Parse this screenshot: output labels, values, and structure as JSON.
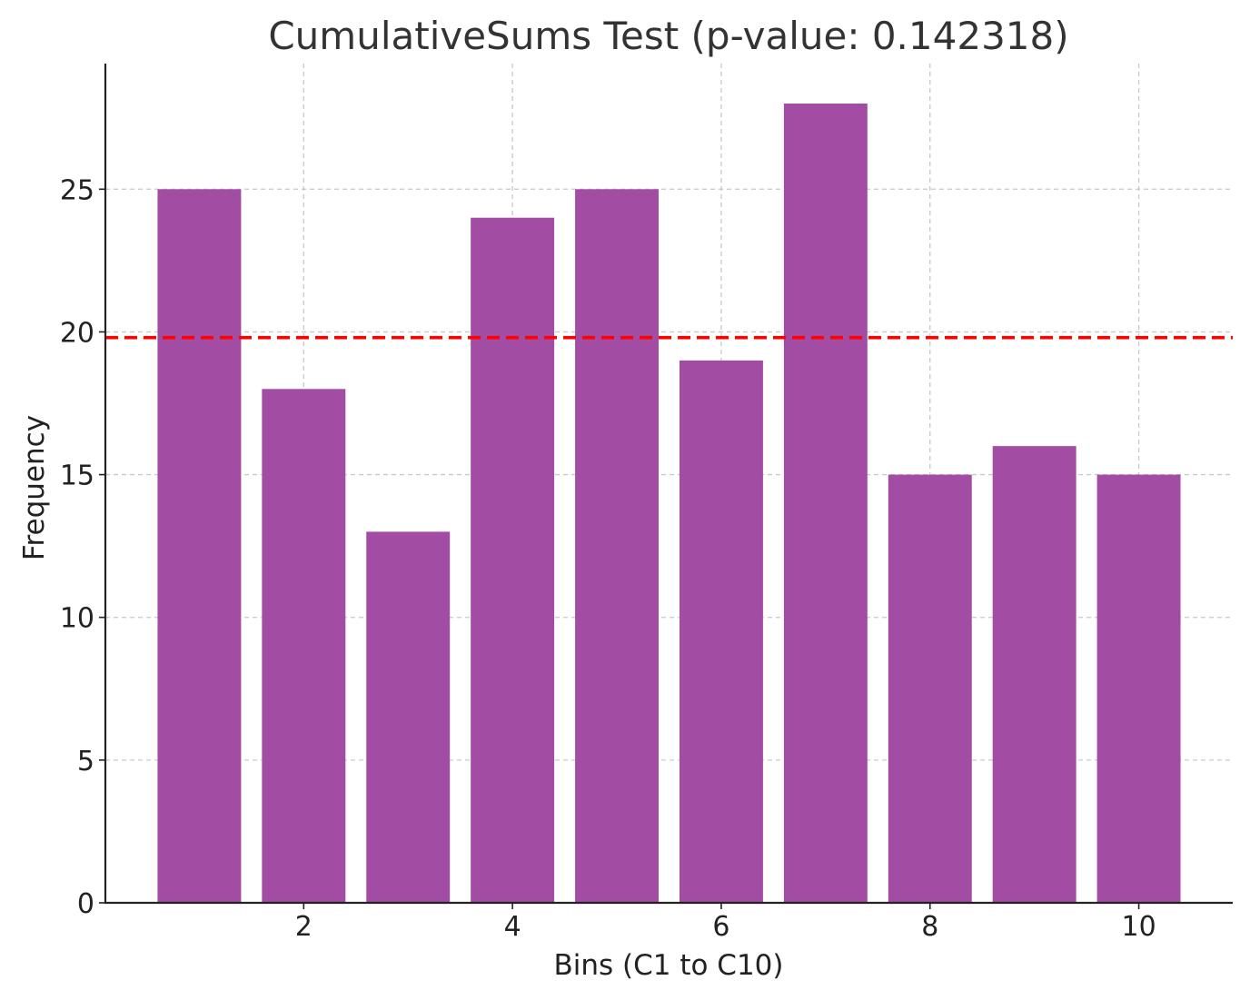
{
  "chart_data": {
    "type": "bar",
    "title": "CumulativeSums Test (p-value: 0.142318)",
    "xlabel": "Bins (C1 to C10)",
    "ylabel": "Frequency",
    "x": [
      1,
      2,
      3,
      4,
      5,
      6,
      7,
      8,
      9,
      10
    ],
    "values": [
      25,
      18,
      13,
      24,
      25,
      19,
      28,
      15,
      16,
      15
    ],
    "xlim": [
      0.1,
      10.9
    ],
    "ylim": [
      0,
      29.4
    ],
    "xticks": [
      2,
      4,
      6,
      8,
      10
    ],
    "yticks": [
      0,
      5,
      10,
      15,
      20,
      25
    ],
    "reference_line": {
      "value": 19.8,
      "color": "#ff0000",
      "style": "dashed"
    },
    "bar_color": "#a34ca3",
    "grid": true,
    "grid_style": "dashed"
  }
}
